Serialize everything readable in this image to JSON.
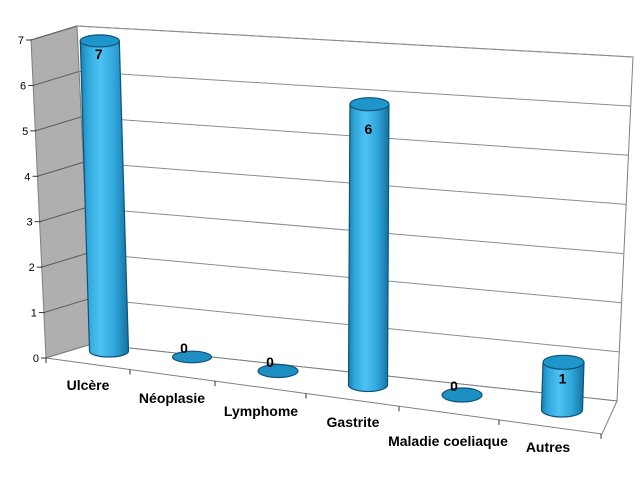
{
  "chart_data": {
    "type": "bar",
    "subtype": "3d-cylinder",
    "title": "",
    "xlabel": "",
    "ylabel": "",
    "categories": [
      "Ulcère",
      "Néoplasie",
      "Lymphome",
      "Gastrite",
      "Maladie coeliaque",
      "Autres"
    ],
    "values": [
      7,
      0,
      0,
      6,
      0,
      1
    ],
    "data_labels": [
      "7",
      "0",
      "0",
      "6",
      "0",
      "1"
    ],
    "ylim": [
      0,
      7
    ],
    "y_ticks": [
      "0",
      "1",
      "2",
      "3",
      "4",
      "5",
      "6",
      "7"
    ],
    "grid": true,
    "legend": false,
    "colors": {
      "background": "#FFFFFF",
      "wall_left": "#AFAFAF",
      "wall_back": "#FFFFFF",
      "floor": "#FFFFFF",
      "edge": "#7F7F7F",
      "gridline": "#8C8C8C",
      "gridline_wall": "#5A5A5A",
      "tick": "#333333",
      "axis_text": "#000000",
      "category_text": "#000000",
      "value_text": "#000000",
      "bar_outline": "#0D5379",
      "bar_top": "#1E96CB",
      "bar_zero": "#1D8FC2",
      "bar_gradient": [
        "#1B7FAE",
        "#2FA6DB",
        "#4EC2F2",
        "#2EA5DA",
        "#15719C"
      ]
    }
  }
}
